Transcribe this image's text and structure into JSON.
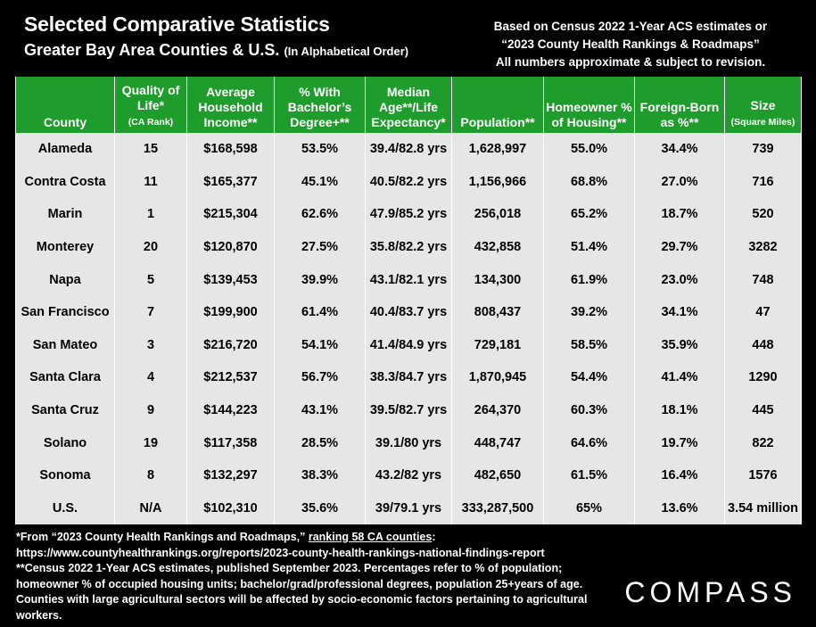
{
  "header": {
    "title": "Selected Comparative Statistics",
    "subtitle": "Greater Bay Area Counties & U.S.",
    "subtitle_note": "(In Alphabetical Order)"
  },
  "source_note": {
    "line1": "Based on Census 2022 1-Year ACS estimates or",
    "line2": "“2023 County Health Rankings & Roadmaps”",
    "line3": "All numbers approximate & subject to revision."
  },
  "table": {
    "headers": {
      "county": "County",
      "quality": "Quality of Life*",
      "quality_sub": "(CA Rank)",
      "income": "Average Household Income**",
      "bachelors": "% With Bachelor’s Degree+**",
      "age": "Median Age**/Life Expectancy*",
      "population": "Population**",
      "homeowner": "Homeowner % of Housing**",
      "foreign": "Foreign-Born as %**",
      "size": "Size",
      "size_sub": "(Square Miles)"
    },
    "rows": [
      {
        "county": "Alameda",
        "quality": "15",
        "income": "$168,598",
        "bachelors": "53.5%",
        "age": "39.4/82.8 yrs",
        "population": "1,628,997",
        "homeowner": "55.0%",
        "foreign": "34.4%",
        "size": "739"
      },
      {
        "county": "Contra Costa",
        "quality": "11",
        "income": "$165,377",
        "bachelors": "45.1%",
        "age": "40.5/82.2 yrs",
        "population": "1,156,966",
        "homeowner": "68.8%",
        "foreign": "27.0%",
        "size": "716"
      },
      {
        "county": "Marin",
        "quality": "1",
        "income": "$215,304",
        "bachelors": "62.6%",
        "age": "47.9/85.2 yrs",
        "population": "256,018",
        "homeowner": "65.2%",
        "foreign": "18.7%",
        "size": "520"
      },
      {
        "county": "Monterey",
        "quality": "20",
        "income": "$120,870",
        "bachelors": "27.5%",
        "age": "35.8/82.2 yrs",
        "population": "432,858",
        "homeowner": "51.4%",
        "foreign": "29.7%",
        "size": "3282"
      },
      {
        "county": "Napa",
        "quality": "5",
        "income": "$139,453",
        "bachelors": "39.9%",
        "age": "43.1/82.1 yrs",
        "population": "134,300",
        "homeowner": "61.9%",
        "foreign": "23.0%",
        "size": "748"
      },
      {
        "county": "San Francisco",
        "quality": "7",
        "income": "$199,900",
        "bachelors": "61.4%",
        "age": "40.4/83.7 yrs",
        "population": "808,437",
        "homeowner": "39.2%",
        "foreign": "34.1%",
        "size": "47"
      },
      {
        "county": "San Mateo",
        "quality": "3",
        "income": "$216,720",
        "bachelors": "54.1%",
        "age": "41.4/84.9 yrs",
        "population": "729,181",
        "homeowner": "58.5%",
        "foreign": "35.9%",
        "size": "448"
      },
      {
        "county": "Santa Clara",
        "quality": "4",
        "income": "$212,537",
        "bachelors": "56.7%",
        "age": "38.3/84.7 yrs",
        "population": "1,870,945",
        "homeowner": "54.4%",
        "foreign": "41.4%",
        "size": "1290"
      },
      {
        "county": "Santa Cruz",
        "quality": "9",
        "income": "$144,223",
        "bachelors": "43.1%",
        "age": "39.5/82.7 yrs",
        "population": "264,370",
        "homeowner": "60.3%",
        "foreign": "18.1%",
        "size": "445"
      },
      {
        "county": "Solano",
        "quality": "19",
        "income": "$117,358",
        "bachelors": "28.5%",
        "age": "39.1/80 yrs",
        "population": "448,747",
        "homeowner": "64.6%",
        "foreign": "19.7%",
        "size": "822"
      },
      {
        "county": "Sonoma",
        "quality": "8",
        "income": "$132,297",
        "bachelors": "38.3%",
        "age": "43.2/82 yrs",
        "population": "482,650",
        "homeowner": "61.5%",
        "foreign": "16.4%",
        "size": "1576"
      },
      {
        "county": "U.S.",
        "quality": "N/A",
        "income": "$102,310",
        "bachelors": "35.6%",
        "age": "39/79.1 yrs",
        "population": "333,287,500",
        "homeowner": "65%",
        "foreign": "13.6%",
        "size": "3.54 million"
      }
    ]
  },
  "footnotes": {
    "line1_prefix": "*From “2023 County Health Rankings and Roadmaps,” ",
    "line1_link": "ranking 58 CA counties",
    "line1_suffix": ":",
    "line2": "https://www.countyhealthrankings.org/reports/2023-county-health-rankings-national-findings-report",
    "line3": "**Census 2022 1-Year ACS estimates, published September 2023. Percentages refer to % of population; homeowner % of occupied housing units; bachelor/grad/professional degrees, population 25+years of age. Counties with large agricultural sectors will be affected by socio-economic factors pertaining to agricultural workers."
  },
  "logo": "COMPASS",
  "colors": {
    "background": "#000000",
    "header_green": "#1f9d2c",
    "cell_gray": "#e6e6e6"
  }
}
